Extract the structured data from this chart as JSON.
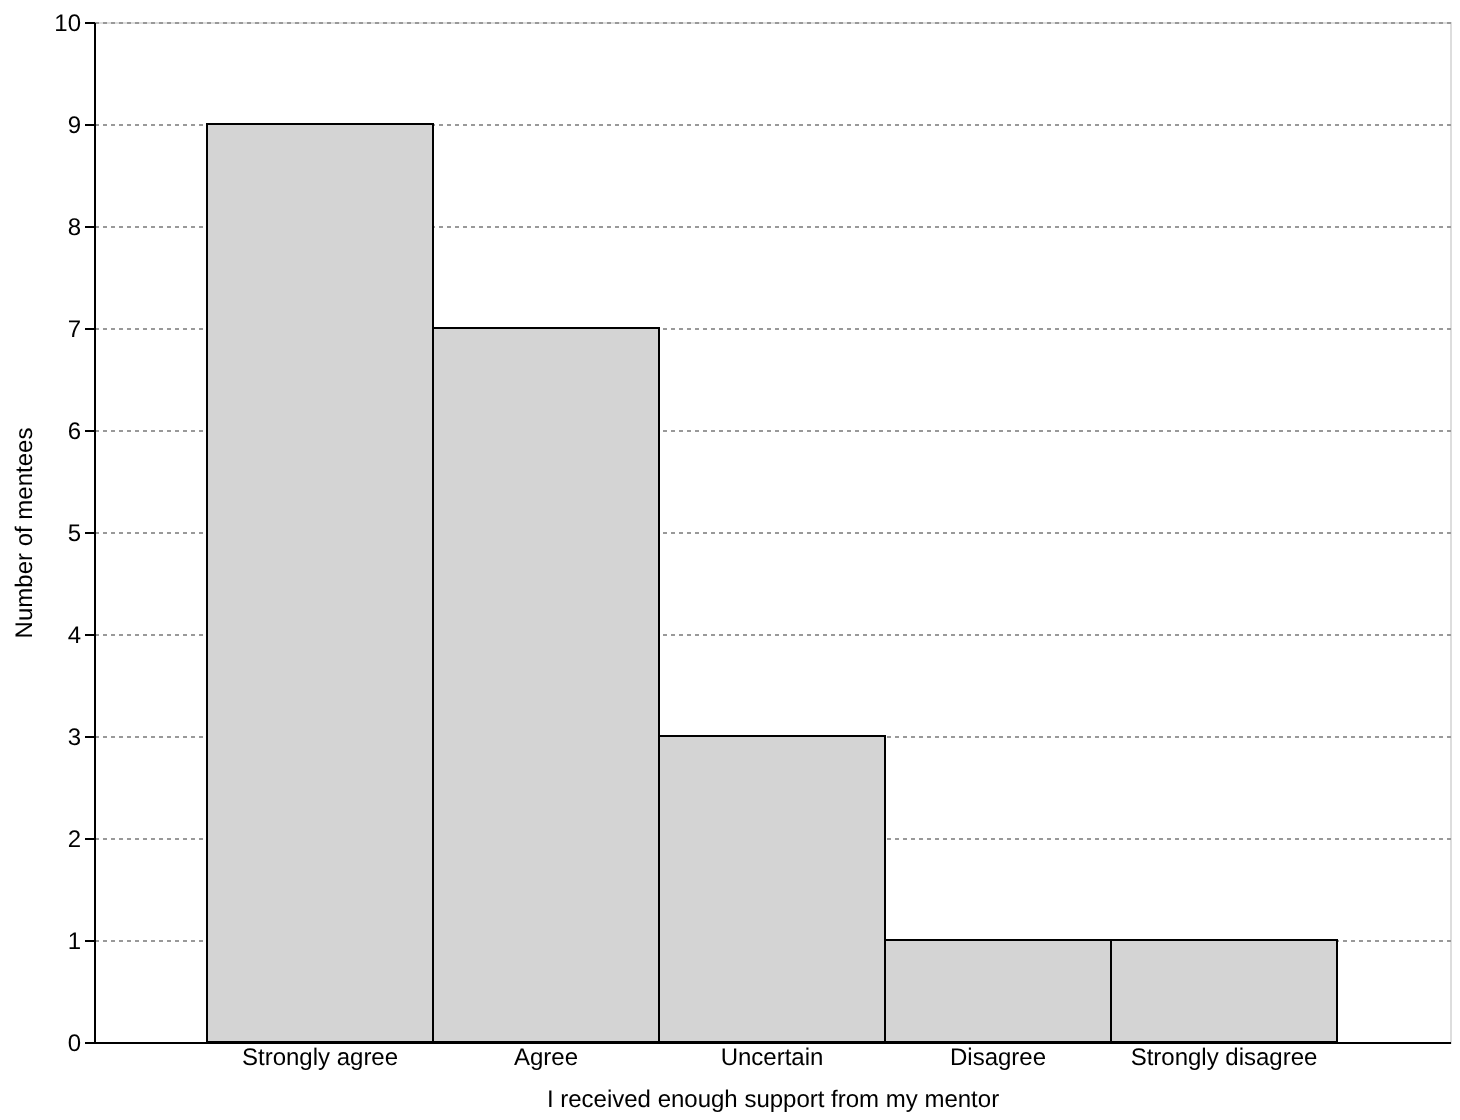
{
  "chart_data": {
    "type": "bar",
    "xlabel": "I received enough support from my mentor",
    "ylabel": "Number of mentees",
    "categories": [
      "Strongly agree",
      "Agree",
      "Uncertain",
      "Disagree",
      "Strongly disagree"
    ],
    "values": [
      9,
      7,
      3,
      1,
      1
    ],
    "color": "#d4d4d4",
    "ylim": [
      0,
      10
    ],
    "yticks": [
      0,
      1,
      2,
      3,
      4,
      5,
      6,
      7,
      8,
      9,
      10
    ],
    "grid": "y"
  }
}
